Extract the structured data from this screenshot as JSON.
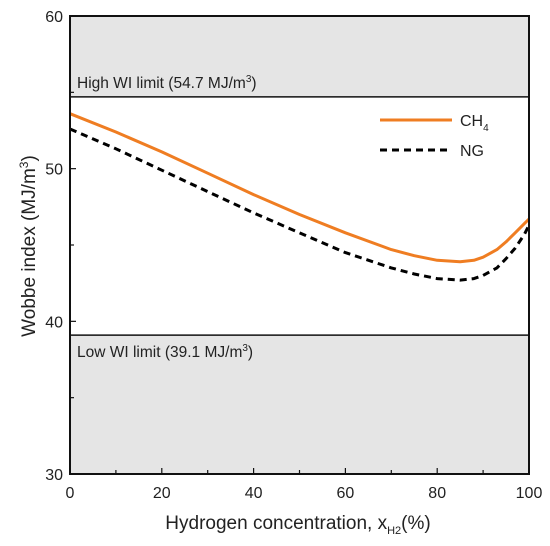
{
  "chart_data": {
    "type": "line",
    "title": "",
    "xlabel": {
      "text": "Hydrogen concentration, x",
      "sub": "H2",
      "suffix": "(%)"
    },
    "ylabel": {
      "text": "Wobbe index (MJ/m",
      "sup": "3",
      "suffix": ")"
    },
    "xlim": [
      0,
      100
    ],
    "ylim": [
      30,
      60
    ],
    "xticks": [
      0,
      20,
      40,
      60,
      80,
      100
    ],
    "yticks": [
      30,
      40,
      50,
      60
    ],
    "grid": false,
    "legend_placement": "top-right, inside",
    "limits": [
      {
        "name": "high",
        "value": 54.7,
        "label": "High WI limit (54.7 MJ/m",
        "sup": "3",
        "suffix": ")"
      },
      {
        "name": "low",
        "value": 39.1,
        "label": "Low WI limit (39.1 MJ/m",
        "sup": "3",
        "suffix": ")"
      }
    ],
    "shaded_regions": [
      {
        "from": 54.7,
        "to": 60,
        "color": "#e5e5e5"
      },
      {
        "from": 30,
        "to": 39.1,
        "color": "#e5e5e5"
      }
    ],
    "series": [
      {
        "name": "CH",
        "name_sub": "4",
        "color": "#ef7d22",
        "style": "solid",
        "x": [
          0,
          10,
          20,
          30,
          40,
          50,
          60,
          70,
          75,
          80,
          85,
          88,
          90,
          93,
          95,
          97,
          99,
          100
        ],
        "y": [
          53.6,
          52.4,
          51.1,
          49.7,
          48.3,
          47.0,
          45.8,
          44.7,
          44.3,
          44.0,
          43.9,
          44.0,
          44.2,
          44.7,
          45.2,
          45.8,
          46.4,
          46.7
        ]
      },
      {
        "name": "NG",
        "color": "#000000",
        "style": "dashed",
        "x": [
          0,
          10,
          20,
          30,
          40,
          50,
          60,
          70,
          75,
          80,
          85,
          88,
          90,
          93,
          95,
          97,
          99,
          100
        ],
        "y": [
          52.6,
          51.3,
          49.9,
          48.5,
          47.1,
          45.8,
          44.5,
          43.5,
          43.1,
          42.8,
          42.7,
          42.8,
          43.0,
          43.5,
          44.1,
          44.8,
          45.7,
          46.3
        ]
      }
    ]
  }
}
